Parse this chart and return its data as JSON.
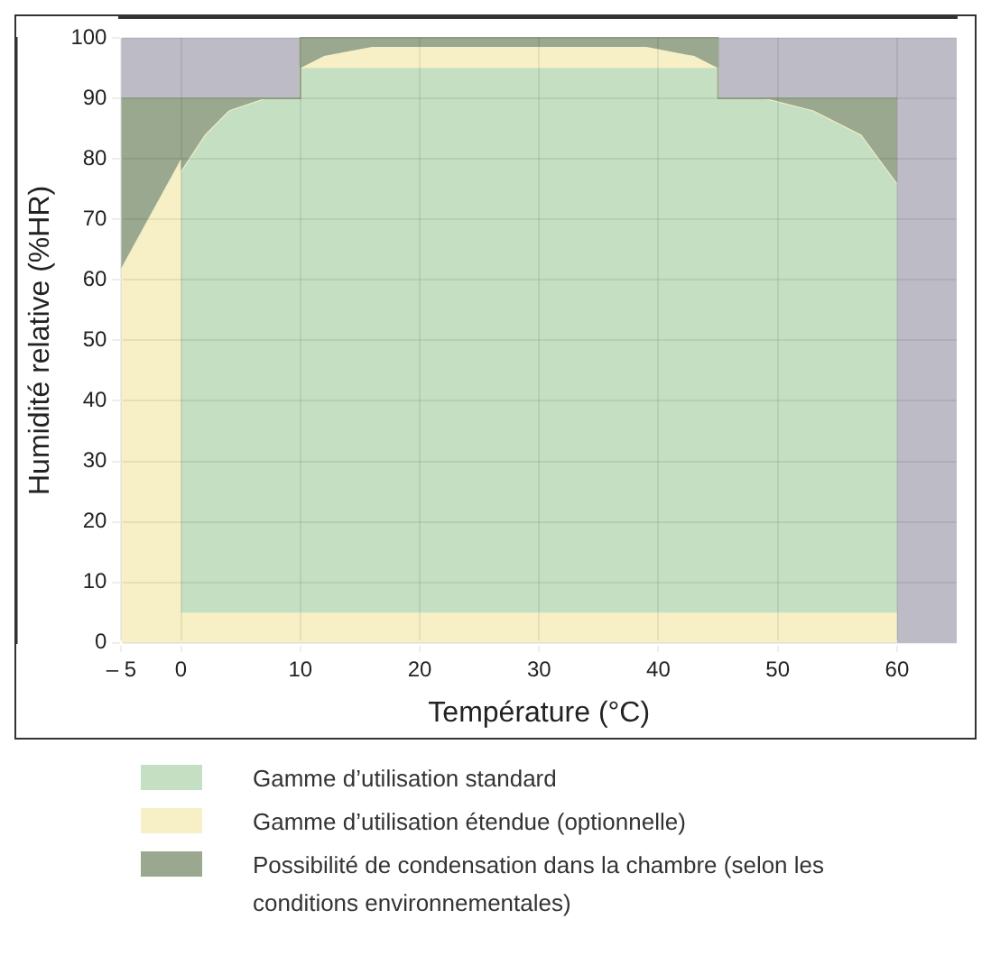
{
  "chart_data": {
    "type": "area",
    "stacked": true,
    "xlabel": "Température (°C)",
    "ylabel": "Humidité relative (%HR)",
    "xlim": [
      -5,
      65
    ],
    "xticks": [
      {
        "value": -5,
        "label": "– 5"
      },
      0,
      10,
      20,
      30,
      40,
      50,
      60
    ],
    "ylim": [
      0,
      100
    ],
    "yticks": [
      0,
      10,
      20,
      30,
      40,
      50,
      60,
      70,
      80,
      90,
      100
    ],
    "grid": true,
    "legend": "bottom",
    "x": [
      -5,
      0,
      0,
      2,
      4,
      7,
      10,
      10,
      12,
      16,
      39,
      43,
      45,
      45,
      49,
      53,
      57,
      60
    ],
    "series": [
      {
        "color": "#f7f0c6",
        "values": [
          62,
          80,
          5,
          5,
          5,
          5,
          5,
          5,
          5,
          5,
          5,
          5,
          5,
          5,
          5,
          5,
          5,
          5
        ]
      },
      {
        "name": "Gamme d’utilisation standard",
        "color": "#c4dfc1",
        "values": [
          0,
          0,
          73,
          79,
          83,
          85,
          85,
          90,
          90,
          90,
          90,
          90,
          90,
          85,
          85,
          83,
          79,
          71
        ]
      },
      {
        "name": "Gamme d’utilisation étendue (optionnelle)",
        "color": "#f7f0c6",
        "values": [
          0,
          0,
          0,
          0,
          0,
          0,
          0,
          0,
          2,
          3.5,
          3.5,
          2,
          0,
          0,
          0,
          0,
          0,
          0
        ]
      },
      {
        "name": "Possibilité de condensation dans la chambre (selon les conditions environnementales)",
        "color": "#9aa88f",
        "values": [
          28,
          10,
          12,
          6,
          2,
          0,
          0,
          5,
          3,
          1.5,
          1.5,
          3,
          5,
          0,
          0,
          2,
          6,
          14
        ]
      }
    ],
    "bands": [
      {
        "axis": "y",
        "from": 90,
        "to": 100,
        "color": "#bcbbc6"
      },
      {
        "axis": "x",
        "from": 60,
        "to": 65,
        "color": "#bcbbc6"
      }
    ]
  }
}
